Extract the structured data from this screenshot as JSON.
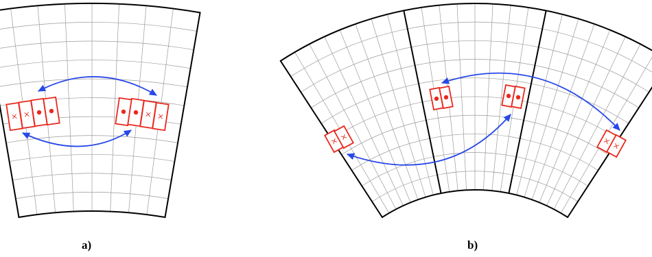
{
  "panels": [
    {
      "id": "a",
      "label": "a)"
    },
    {
      "id": "b",
      "label": "b)"
    }
  ],
  "colors": {
    "grid": "#9a9a9a",
    "outline": "#000000",
    "ghost": "#e8281e",
    "exchange": "#2848e8"
  }
}
